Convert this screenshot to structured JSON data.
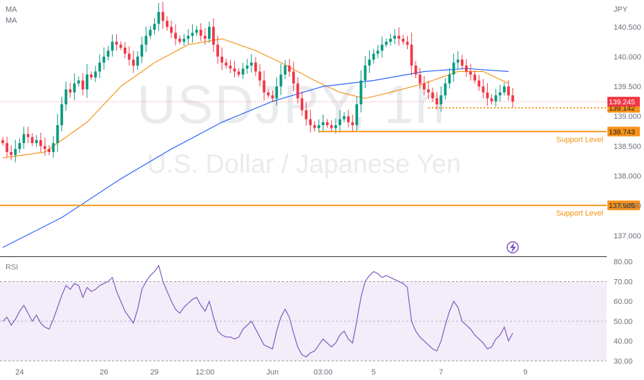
{
  "watermark": {
    "symbol": "USDJPY, 1h",
    "name": "U.S. Dollar / Japanese Yen"
  },
  "indicator_labels": [
    "MA",
    "MA"
  ],
  "chart_data": [
    {
      "type": "candlestick",
      "currency": "JPY",
      "ylim": [
        136.65,
        140.95
      ],
      "y_ticks": [
        "140.500",
        "140.000",
        "139.500",
        "139.000",
        "138.500",
        "138.000",
        "137.500",
        "137.000"
      ],
      "x_ticks": [
        {
          "label": "24",
          "bar": 4
        },
        {
          "label": "26",
          "bar": 24
        },
        {
          "label": "29",
          "bar": 36
        },
        {
          "label": "12:00",
          "bar": 48
        },
        {
          "label": "Jun",
          "bar": 64
        },
        {
          "label": "03:00",
          "bar": 76
        },
        {
          "label": "5",
          "bar": 88
        },
        {
          "label": "7",
          "bar": 104
        },
        {
          "label": "9",
          "bar": 124
        }
      ],
      "closes": [
        138.55,
        138.4,
        138.35,
        138.45,
        138.55,
        138.7,
        138.65,
        138.55,
        138.6,
        138.5,
        138.45,
        138.4,
        138.55,
        138.85,
        139.2,
        139.45,
        139.4,
        139.55,
        139.6,
        139.45,
        139.7,
        139.65,
        139.75,
        139.9,
        140.0,
        140.1,
        140.25,
        140.2,
        140.15,
        140.05,
        139.95,
        139.85,
        140.0,
        140.2,
        140.35,
        140.45,
        140.55,
        140.75,
        140.6,
        140.5,
        140.4,
        140.3,
        140.25,
        140.3,
        140.35,
        140.4,
        140.45,
        140.35,
        140.3,
        140.5,
        140.2,
        140.0,
        139.9,
        139.85,
        139.8,
        139.75,
        139.7,
        139.8,
        139.85,
        139.9,
        139.75,
        139.6,
        139.4,
        139.35,
        139.3,
        139.5,
        139.7,
        139.85,
        139.75,
        139.55,
        139.3,
        139.1,
        138.95,
        138.85,
        138.8,
        138.85,
        138.9,
        138.85,
        138.8,
        138.85,
        138.95,
        139.0,
        138.9,
        138.85,
        139.2,
        139.6,
        139.85,
        139.95,
        140.05,
        140.1,
        140.2,
        140.25,
        140.3,
        140.35,
        140.3,
        140.25,
        140.2,
        139.85,
        139.7,
        139.55,
        139.45,
        139.4,
        139.3,
        139.2,
        139.35,
        139.55,
        139.7,
        139.9,
        139.95,
        139.85,
        139.75,
        139.7,
        139.6,
        139.5,
        139.4,
        139.3,
        139.25,
        139.35,
        139.4,
        139.5,
        139.35,
        139.245
      ],
      "moving_averages": [
        {
          "color": "#f7931a",
          "start": 138.3,
          "points": [
            [
              0,
              138.3
            ],
            [
              10,
              138.4
            ],
            [
              20,
              138.9
            ],
            [
              28,
              139.5
            ],
            [
              36,
              139.9
            ],
            [
              44,
              140.2
            ],
            [
              52,
              140.3
            ],
            [
              60,
              140.1
            ],
            [
              66,
              139.9
            ],
            [
              74,
              139.6
            ],
            [
              80,
              139.4
            ],
            [
              86,
              139.3
            ],
            [
              92,
              139.4
            ],
            [
              100,
              139.55
            ],
            [
              108,
              139.75
            ],
            [
              114,
              139.75
            ],
            [
              120,
              139.55
            ]
          ]
        },
        {
          "color": "#2962ff",
          "points": [
            [
              0,
              136.8
            ],
            [
              14,
              137.3
            ],
            [
              28,
              137.95
            ],
            [
              40,
              138.45
            ],
            [
              52,
              138.9
            ],
            [
              64,
              139.25
            ],
            [
              76,
              139.5
            ],
            [
              88,
              139.6
            ],
            [
              100,
              139.75
            ],
            [
              110,
              139.8
            ],
            [
              120,
              139.75
            ]
          ]
        }
      ],
      "horizontal_levels": [
        {
          "value": 139.142,
          "label": "139.142",
          "style": "dotted",
          "color": "#f7931a"
        },
        {
          "value": 138.743,
          "label": "138.743",
          "annotation": "Support Level",
          "color": "#f7931a"
        },
        {
          "value": 137.505,
          "label": "137.505",
          "annotation": "Support Level",
          "color": "#f7931a"
        }
      ],
      "last_price": {
        "value": 139.245,
        "label": "139.245",
        "color": "#f23645"
      },
      "colors": {
        "up": "#089981",
        "down": "#f23645"
      }
    },
    {
      "type": "line",
      "title": "RSI",
      "ylim": [
        28,
        82
      ],
      "y_ticks": [
        "80.00",
        "70.00",
        "60.00",
        "50.00",
        "40.00",
        "30.00"
      ],
      "band": [
        30,
        70
      ],
      "midline": 50,
      "color": "#7e57c2",
      "values": [
        50,
        52,
        48,
        51,
        55,
        58,
        54,
        50,
        53,
        49,
        47,
        46,
        51,
        57,
        63,
        68,
        66,
        69,
        68,
        62,
        67,
        65,
        66,
        68,
        69,
        70,
        72,
        65,
        60,
        55,
        52,
        49,
        56,
        66,
        70,
        73,
        75,
        78,
        70,
        65,
        60,
        56,
        54,
        57,
        59,
        61,
        62,
        58,
        55,
        60,
        52,
        45,
        43,
        42,
        42,
        41,
        42,
        46,
        48,
        50,
        46,
        42,
        38,
        37,
        36,
        45,
        52,
        56,
        52,
        44,
        37,
        33,
        32,
        34,
        35,
        38,
        41,
        39,
        37,
        39,
        43,
        45,
        41,
        39,
        50,
        62,
        70,
        73,
        75,
        74,
        72,
        73,
        72,
        71,
        70,
        69,
        67,
        50,
        45,
        42,
        40,
        38,
        36,
        35,
        40,
        48,
        55,
        60,
        57,
        50,
        48,
        46,
        43,
        41,
        39,
        36,
        37,
        41,
        43,
        47,
        40,
        44
      ]
    }
  ]
}
